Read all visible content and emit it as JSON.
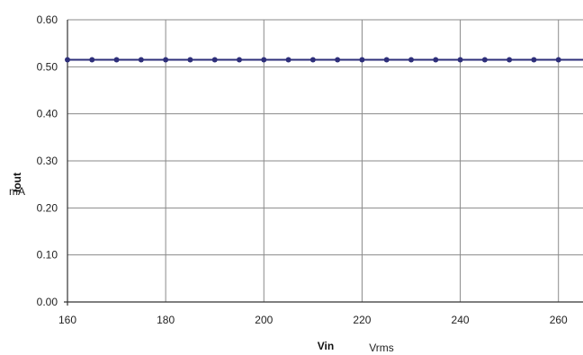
{
  "chart_data": {
    "type": "line",
    "title": "",
    "xlabel": "Vin",
    "xunit": "Vrms",
    "ylabel": "Iout",
    "yunit": "mA",
    "xlim": [
      160,
      265
    ],
    "ylim": [
      0,
      0.6
    ],
    "xticks": [
      160,
      180,
      200,
      220,
      240,
      260
    ],
    "xtick_labels": [
      "160",
      "180",
      "200",
      "220",
      "240",
      "260"
    ],
    "yticks": [
      0,
      0.1,
      0.2,
      0.3,
      0.4,
      0.5,
      0.6
    ],
    "ytick_labels": [
      "0.00",
      "0.10",
      "0.20",
      "0.30",
      "0.40",
      "0.50",
      "0.60"
    ],
    "grid": true,
    "legend": "none",
    "series": [
      {
        "color": "#2e2f7a",
        "x": [
          160,
          165,
          170,
          175,
          180,
          185,
          190,
          195,
          200,
          205,
          210,
          215,
          220,
          225,
          230,
          235,
          240,
          245,
          250,
          255,
          260,
          265
        ],
        "y": [
          0.515,
          0.515,
          0.515,
          0.515,
          0.515,
          0.515,
          0.515,
          0.515,
          0.515,
          0.515,
          0.515,
          0.515,
          0.515,
          0.515,
          0.515,
          0.515,
          0.515,
          0.515,
          0.515,
          0.515,
          0.515,
          0.515
        ]
      }
    ]
  }
}
